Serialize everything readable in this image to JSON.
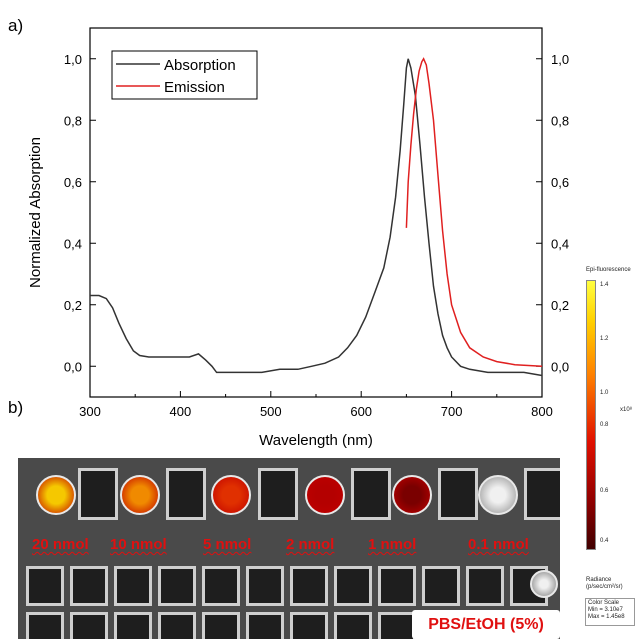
{
  "panel_labels": {
    "a": "a)",
    "b": "b)"
  },
  "chart_data": {
    "type": "line",
    "xlabel": "Wavelength (nm)",
    "ylabel": "Normalized Absorption",
    "xlim": [
      300,
      800
    ],
    "ylim": [
      -0.1,
      1.1
    ],
    "x_ticks": [
      "300",
      "400",
      "500",
      "600",
      "700",
      "800"
    ],
    "y_ticks": [
      "0,0",
      "0,2",
      "0,4",
      "0,6",
      "0,8",
      "1,0"
    ],
    "right_y_ticks": [
      "0,0",
      "0,2",
      "0,4",
      "0,6",
      "0,8",
      "1,0"
    ],
    "legend_position": "top-left",
    "series": [
      {
        "name": "Absorption",
        "color": "#333333",
        "points": [
          [
            300,
            0.23
          ],
          [
            310,
            0.23
          ],
          [
            318,
            0.22
          ],
          [
            325,
            0.19
          ],
          [
            332,
            0.14
          ],
          [
            340,
            0.09
          ],
          [
            348,
            0.05
          ],
          [
            355,
            0.035
          ],
          [
            365,
            0.03
          ],
          [
            380,
            0.03
          ],
          [
            395,
            0.03
          ],
          [
            410,
            0.03
          ],
          [
            420,
            0.04
          ],
          [
            428,
            0.02
          ],
          [
            435,
            0.0
          ],
          [
            440,
            -0.02
          ],
          [
            450,
            -0.02
          ],
          [
            470,
            -0.02
          ],
          [
            490,
            -0.02
          ],
          [
            510,
            -0.01
          ],
          [
            530,
            -0.01
          ],
          [
            545,
            0.0
          ],
          [
            560,
            0.01
          ],
          [
            575,
            0.03
          ],
          [
            585,
            0.06
          ],
          [
            595,
            0.1
          ],
          [
            605,
            0.16
          ],
          [
            615,
            0.24
          ],
          [
            625,
            0.32
          ],
          [
            632,
            0.42
          ],
          [
            638,
            0.55
          ],
          [
            643,
            0.7
          ],
          [
            647,
            0.85
          ],
          [
            650,
            0.97
          ],
          [
            652,
            1.0
          ],
          [
            655,
            0.97
          ],
          [
            660,
            0.88
          ],
          [
            665,
            0.72
          ],
          [
            670,
            0.55
          ],
          [
            675,
            0.4
          ],
          [
            680,
            0.26
          ],
          [
            685,
            0.17
          ],
          [
            690,
            0.1
          ],
          [
            695,
            0.06
          ],
          [
            700,
            0.03
          ],
          [
            710,
            0.0
          ],
          [
            720,
            -0.01
          ],
          [
            740,
            -0.02
          ],
          [
            760,
            -0.02
          ],
          [
            780,
            -0.02
          ],
          [
            800,
            -0.03
          ]
        ]
      },
      {
        "name": "Emission",
        "color": "#e02020",
        "points": [
          [
            650,
            0.45
          ],
          [
            652,
            0.6
          ],
          [
            655,
            0.72
          ],
          [
            658,
            0.82
          ],
          [
            661,
            0.9
          ],
          [
            664,
            0.96
          ],
          [
            667,
            0.99
          ],
          [
            669,
            1.0
          ],
          [
            672,
            0.98
          ],
          [
            675,
            0.92
          ],
          [
            680,
            0.8
          ],
          [
            685,
            0.62
          ],
          [
            690,
            0.44
          ],
          [
            695,
            0.3
          ],
          [
            700,
            0.2
          ],
          [
            710,
            0.11
          ],
          [
            720,
            0.06
          ],
          [
            735,
            0.03
          ],
          [
            750,
            0.015
          ],
          [
            770,
            0.005
          ],
          [
            800,
            0.0
          ]
        ]
      }
    ]
  },
  "photo": {
    "labels": [
      "20 nmol",
      "10 nmol",
      "5 nmol",
      "2 nmol",
      "1 nmol",
      "0.1 nmol"
    ],
    "solvent_label": "PBS/EtOH  (5%)",
    "spot_colors": [
      "#f5c800",
      "#f08a00",
      "#e03000",
      "#b40000",
      "#7a0000",
      "#d8d8d8"
    ]
  },
  "colorbar": {
    "title": "Epi-fluorescence",
    "ticks": [
      "1.4",
      "1.2",
      "1.0",
      "0.8",
      "0.6",
      "0.4"
    ],
    "multiplier": "x10⁸",
    "radiance_label": "Radiance",
    "radiance_units": "(p/sec/cm²/sr)",
    "scale_title": "Color Scale",
    "scale_min": "Min = 3.10e7",
    "scale_max": "Max = 1.45e8"
  }
}
